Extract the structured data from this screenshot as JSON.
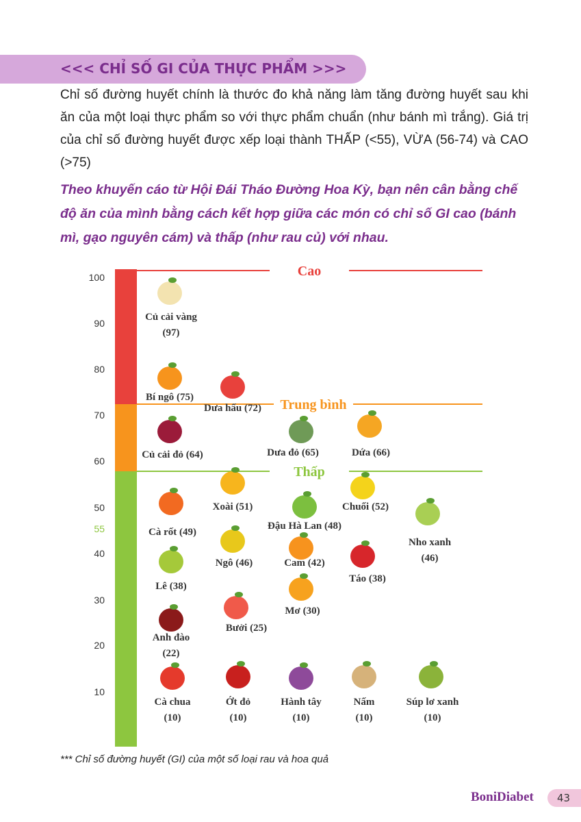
{
  "header": {
    "title": "<<< CHỈ SỐ GI CỦA THỰC PHẨM >>>"
  },
  "intro": {
    "paragraph": "Chỉ số đường huyết chính là thước đo khả năng làm tăng đường huyết sau khi ăn của một loại thực phẩm so với thực phẩm chuẩn (như bánh mì trắng). Giá trị của chỉ số đường huyết được xếp loại thành THẤP (<55), VỪA (56-74) và CAO (>75)",
    "highlight": "Theo khuyến cáo từ Hội Đái Tháo Đường Hoa Kỳ, bạn nên cân bằng chế độ ăn của mình bằng cách kết hợp giữa các món có chỉ số GI cao (bánh mì, gạo nguyên cám) và thấp (như rau củ) với nhau."
  },
  "chart": {
    "ticks": [
      "100",
      "90",
      "80",
      "70",
      "60",
      "50",
      "55",
      "40",
      "30",
      "20",
      "10"
    ],
    "levels": [
      "Cao",
      "Trung bình",
      "Thấp"
    ],
    "foods": [
      [
        "Củ cải vàng",
        "(97)"
      ],
      [
        "Bí ngô (75)"
      ],
      [
        "Dưa hấu (72)"
      ],
      [
        "Củ cải đỏ (64)"
      ],
      [
        "Dưa đỏ (65)"
      ],
      [
        "Dứa (66)"
      ],
      [
        "Xoài (51)"
      ],
      [
        "Chuối (52)"
      ],
      [
        "Đậu Hà Lan (48)"
      ],
      [
        "Cà rốt (49)"
      ],
      [
        "Nho xanh",
        "(46)"
      ],
      [
        "Ngô (46)"
      ],
      [
        "Cam (42)"
      ],
      [
        "Táo (38)"
      ],
      [
        "Lê (38)"
      ],
      [
        "Mơ (30)"
      ],
      [
        "Bưởi (25)"
      ],
      [
        "Anh đào",
        "(22)"
      ],
      [
        "Cà chua",
        "(10)"
      ],
      [
        "Ớt đỏ",
        "(10)"
      ],
      [
        "Hành tây",
        "(10)"
      ],
      [
        "Nấm",
        "(10)"
      ],
      [
        "Súp lơ xanh",
        "(10)"
      ]
    ]
  },
  "footnote": "*** Chỉ số đường huyết (GI) của một số loại rau và hoa quả",
  "footer": {
    "brand": "BoniDiabet",
    "page": "43"
  }
}
